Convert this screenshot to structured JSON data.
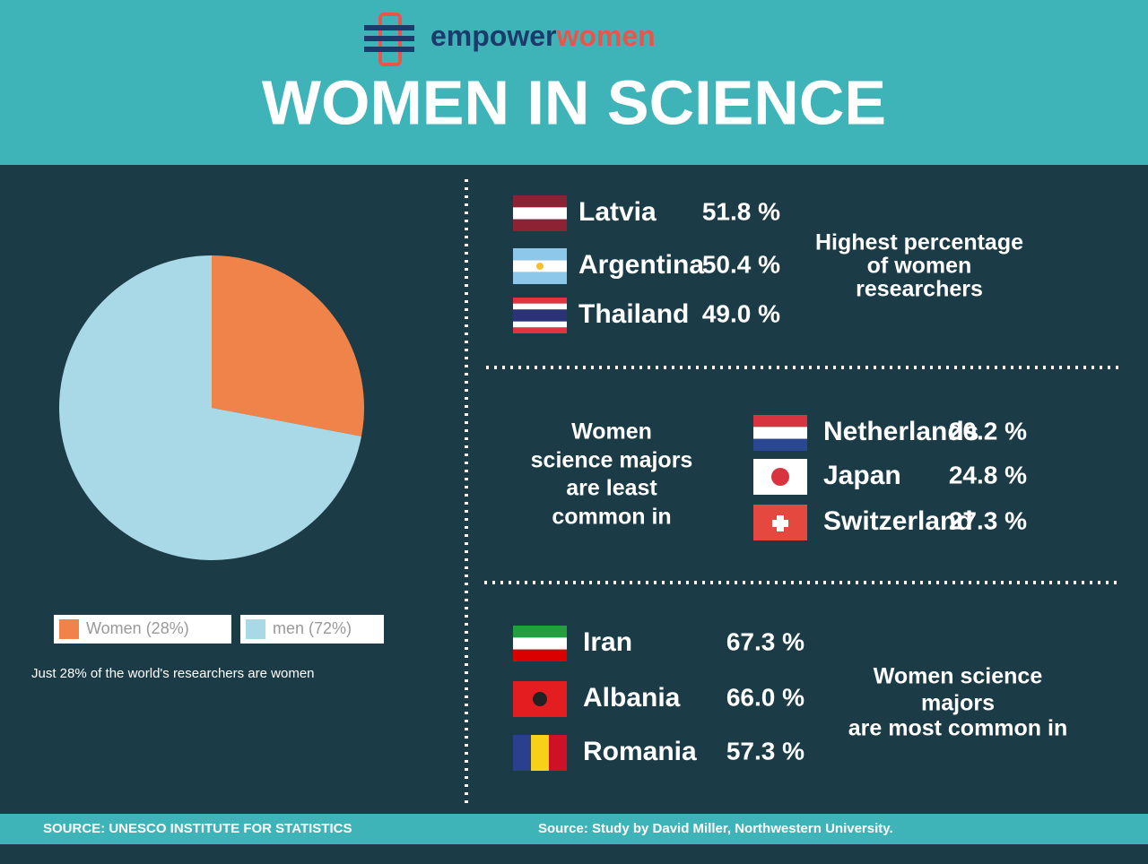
{
  "header": {
    "logo": [
      "empower",
      "women"
    ],
    "title": "WOMEN IN SCIENCE"
  },
  "chart_data": {
    "type": "pie",
    "categories": [
      "Women (28%)",
      "men (72%)"
    ],
    "values": [
      28,
      72
    ],
    "colors": [
      "#f0834a",
      "#a9d8e6"
    ],
    "caption": "Just 28% of the world's researchers are women"
  },
  "sections": [
    {
      "heading": [
        "Highest percentage",
        "of women",
        "researchers"
      ],
      "rows": [
        {
          "country": "Latvia",
          "value": "51.8 %"
        },
        {
          "country": "Argentina",
          "value": "50.4 %"
        },
        {
          "country": "Thailand",
          "value": "49.0 %"
        }
      ]
    },
    {
      "heading": [
        "Women",
        "science majors",
        "are least",
        "common in"
      ],
      "rows": [
        {
          "country": "Netherlands",
          "value": "20.2 %"
        },
        {
          "country": "Japan",
          "value": "24.8 %"
        },
        {
          "country": "Switzerland",
          "value": "27.3 %"
        }
      ]
    },
    {
      "heading": [
        "Women science",
        "majors",
        "are most common in"
      ],
      "rows": [
        {
          "country": "Iran",
          "value": "67.3 %"
        },
        {
          "country": "Albania",
          "value": "66.0 %"
        },
        {
          "country": "Romania",
          "value": "57.3 %"
        }
      ]
    }
  ],
  "footer": {
    "left": "SOURCE: UNESCO INSTITUTE FOR STATISTICS",
    "right": "Source: Study by David Miller, Northwestern University."
  }
}
